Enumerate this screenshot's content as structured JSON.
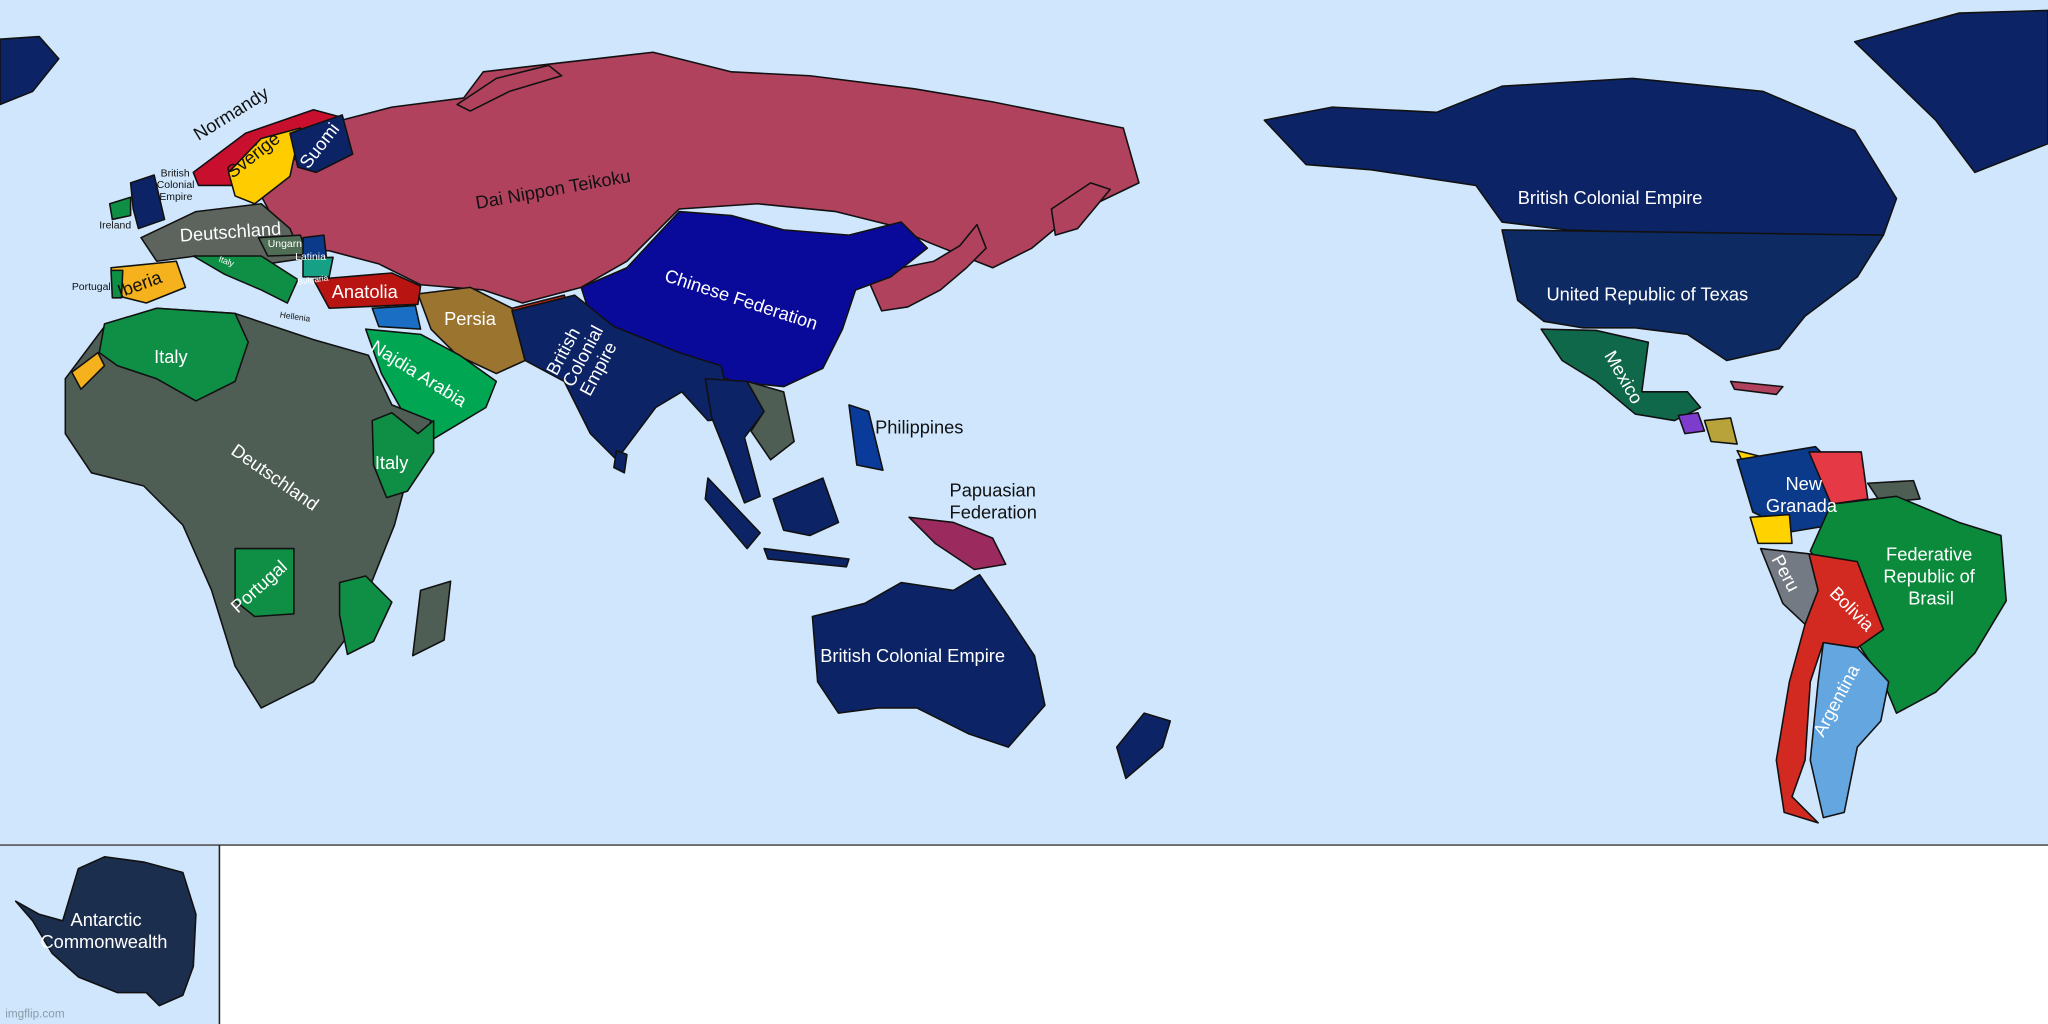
{
  "colors": {
    "ocean": "#cfe6fd",
    "dai_nippon": "#b0425e",
    "chinese_federation": "#0a0a9a",
    "british_colonial": "#0c2466",
    "united_republic_texas": "#0e2a62",
    "deutschland": "#4f5e55",
    "italy": "#0f8f45",
    "najdia_arabia": "#00a651",
    "persia": "#9b7430",
    "anatolia": "#b81512",
    "iberia": "#f6b21c",
    "sverige": "#ffcc00",
    "normandy": "#c8102e",
    "papuasian": "#9b2a5f",
    "mexico": "#10684a",
    "new_granada": "#0b3a8a",
    "brasil": "#0b8a3c",
    "peru": "#737a83",
    "bolivia": "#d22a20",
    "argentina": "#64a6e0",
    "antarctic": "#1c2e4e"
  },
  "labels": {
    "normandy": "Normandy",
    "sverige": "Sverige",
    "suomi": "Suomi",
    "british_europe": [
      "British",
      "Colonial",
      "Empire"
    ],
    "ireland": "Ireland",
    "deutschland_europe": "Deutschland",
    "ungarn": "Ungarn",
    "latinia": "Latinia",
    "bulgaria": "Bulgaria",
    "italy_europe": "Italy",
    "portugal_europe": "Portugal",
    "iberia": "Iberia",
    "hellenia": "Hellenia",
    "anatolia": "Anatolia",
    "dai_nippon": "Dai Nippon Teikoku",
    "chinese_federation": "Chinese Federation",
    "persia": "Persia",
    "british_india": [
      "British",
      "Colonial",
      "Empire"
    ],
    "najdia_arabia": "Najdia Arabia",
    "italy_north_africa": "Italy",
    "italy_east_africa": "Italy",
    "deutschland_africa": "Deutschland",
    "portugal_africa": "Portugal",
    "philippines": "Philippines",
    "papuasian": [
      "Papuasian",
      "Federation"
    ],
    "british_australia": "British Colonial Empire",
    "british_north_america": "British Colonial Empire",
    "texas": "United Republic of Texas",
    "mexico": "Mexico",
    "new_granada": [
      "New",
      "Granada"
    ],
    "brasil": [
      "Federative",
      "Republic of",
      "Brasil"
    ],
    "peru": "Peru",
    "bolivia": "Bolivia",
    "argentina": "Argentina",
    "antarctic": [
      "Antarctic",
      "Commonwealth"
    ]
  },
  "watermark": "imgflip.com"
}
